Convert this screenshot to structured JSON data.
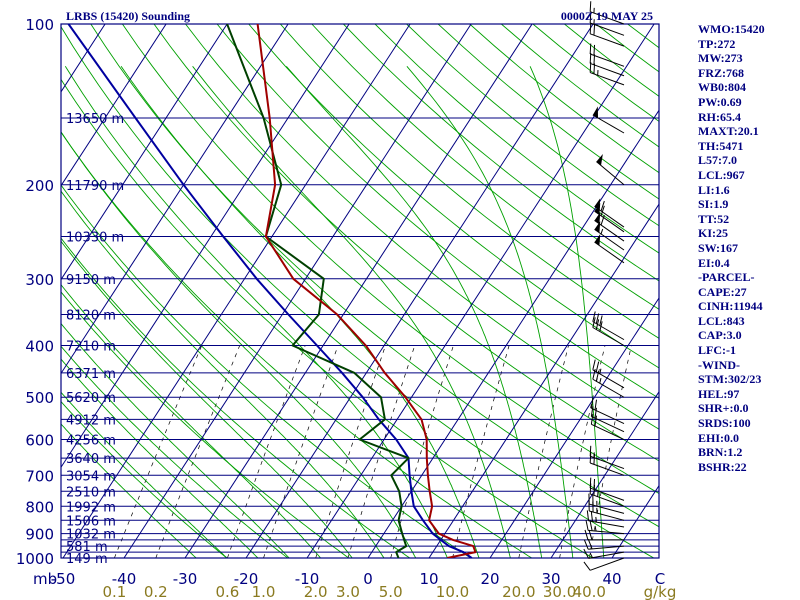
{
  "header": {
    "station": "LRBS (15420) Sounding",
    "time": "0000Z 19 MAY 25"
  },
  "axes": {
    "y_unit": "mb",
    "pressure_ticks": [
      "100",
      "200",
      "300",
      "400",
      "500",
      "600",
      "700",
      "800",
      "900",
      "1000"
    ],
    "temperature_ticks": [
      "-50",
      "-40",
      "-30",
      "-20",
      "-10",
      "0",
      "10",
      "20",
      "30",
      "40"
    ],
    "mixing_ratio_ticks": [
      "0.1",
      "0.2",
      "0.6",
      "1.0",
      "2.0",
      "3.0",
      "5.0",
      "10.0",
      "20.0",
      "30.0",
      "40.0"
    ],
    "mixing_ratio_unit": "g/kg",
    "temperature_unit": "C"
  },
  "colors": {
    "frame": "#000080",
    "isobar": "#000080",
    "isotherm": "#000080",
    "dry_adiabat": "#00a000",
    "moist_adiabat": "#00a000",
    "mixing_ratio": "#000000",
    "temperature": "#a00000",
    "dewpoint": "#004000",
    "parcel": "#0000a0",
    "tick_label": "#000080",
    "mixing_label": "#8a7a20",
    "sidebar_text": "#000080",
    "wind_barb": "#000000"
  },
  "chart_data": {
    "type": "skew-t",
    "pressure_range_mb": [
      1000,
      100
    ],
    "temperature_range_c": [
      -50,
      50
    ],
    "isobars_mb": [
      100,
      150,
      200,
      250,
      300,
      350,
      400,
      450,
      500,
      550,
      600,
      650,
      700,
      750,
      800,
      850,
      900,
      925,
      950,
      975,
      1000
    ],
    "heights": [
      {
        "p": 150,
        "label": "13650 m"
      },
      {
        "p": 200,
        "label": "11790 m"
      },
      {
        "p": 250,
        "label": "10330 m"
      },
      {
        "p": 300,
        "label": "9150 m"
      },
      {
        "p": 350,
        "label": "8120 m"
      },
      {
        "p": 400,
        "label": "7210 m"
      },
      {
        "p": 450,
        "label": "6371 m"
      },
      {
        "p": 500,
        "label": "5620 m"
      },
      {
        "p": 550,
        "label": "4912 m"
      },
      {
        "p": 600,
        "label": "4256 m"
      },
      {
        "p": 650,
        "label": "3640 m"
      },
      {
        "p": 700,
        "label": "3054 m"
      },
      {
        "p": 750,
        "label": "2510 m"
      },
      {
        "p": 800,
        "label": "1992 m"
      },
      {
        "p": 850,
        "label": "1506 m"
      },
      {
        "p": 900,
        "label": "1032 m"
      },
      {
        "p": 950,
        "label": "581 m"
      },
      {
        "p": 1000,
        "label": "149 m"
      }
    ],
    "temperature": [
      [
        1000,
        13
      ],
      [
        975,
        17
      ],
      [
        950,
        16
      ],
      [
        925,
        12
      ],
      [
        900,
        9
      ],
      [
        850,
        6
      ],
      [
        800,
        5
      ],
      [
        750,
        3
      ],
      [
        700,
        1
      ],
      [
        650,
        -1
      ],
      [
        600,
        -3
      ],
      [
        550,
        -6
      ],
      [
        500,
        -11
      ],
      [
        450,
        -17
      ],
      [
        400,
        -23
      ],
      [
        350,
        -31
      ],
      [
        300,
        -42
      ],
      [
        250,
        -51
      ],
      [
        200,
        -55
      ],
      [
        150,
        -63
      ],
      [
        100,
        -75
      ]
    ],
    "dewpoint": [
      [
        1000,
        5
      ],
      [
        975,
        4
      ],
      [
        950,
        5
      ],
      [
        925,
        4
      ],
      [
        900,
        3
      ],
      [
        850,
        1
      ],
      [
        800,
        0
      ],
      [
        750,
        -2
      ],
      [
        700,
        -5
      ],
      [
        650,
        -4
      ],
      [
        600,
        -14
      ],
      [
        550,
        -12
      ],
      [
        500,
        -15
      ],
      [
        450,
        -22
      ],
      [
        400,
        -35
      ],
      [
        350,
        -34
      ],
      [
        300,
        -37
      ],
      [
        250,
        -51
      ],
      [
        200,
        -54
      ],
      [
        150,
        -64
      ],
      [
        100,
        -80
      ]
    ],
    "parcel": [
      [
        1000,
        17
      ],
      [
        975,
        15
      ],
      [
        950,
        12
      ],
      [
        925,
        10
      ],
      [
        900,
        8
      ],
      [
        850,
        5
      ],
      [
        800,
        2
      ],
      [
        750,
        0
      ],
      [
        700,
        -2
      ],
      [
        650,
        -4
      ],
      [
        600,
        -8
      ],
      [
        550,
        -13
      ],
      [
        500,
        -18
      ],
      [
        450,
        -24
      ],
      [
        400,
        -31
      ],
      [
        350,
        -39
      ],
      [
        300,
        -48
      ],
      [
        250,
        -58
      ],
      [
        200,
        -70
      ],
      [
        150,
        -85
      ],
      [
        100,
        -106
      ]
    ],
    "dry_adiabats_k": [
      250,
      260,
      270,
      280,
      290,
      300,
      310,
      320,
      330,
      340,
      350,
      360,
      370,
      380,
      390,
      400,
      410,
      420,
      430,
      440,
      450,
      460,
      470,
      480,
      490,
      500,
      510,
      520,
      530,
      540,
      550,
      560
    ],
    "moist_adiabats_c": [
      -25,
      -20,
      -15,
      -10,
      -5,
      0,
      5,
      10,
      15,
      20,
      25,
      30,
      35,
      40
    ],
    "mixing_ratios_gkg": [
      0.1,
      0.2,
      0.6,
      1.0,
      2.0,
      3.0,
      5.0,
      10.0,
      20.0,
      30.0,
      40.0
    ],
    "wind_barbs": [
      {
        "p": 1000,
        "dir": 250,
        "spd": 10
      },
      {
        "p": 975,
        "dir": 260,
        "spd": 15
      },
      {
        "p": 950,
        "dir": 265,
        "spd": 20
      },
      {
        "p": 925,
        "dir": 270,
        "spd": 20
      },
      {
        "p": 900,
        "dir": 275,
        "spd": 25
      },
      {
        "p": 875,
        "dir": 280,
        "spd": 25
      },
      {
        "p": 850,
        "dir": 285,
        "spd": 25
      },
      {
        "p": 825,
        "dir": 285,
        "spd": 25
      },
      {
        "p": 800,
        "dir": 290,
        "spd": 25
      },
      {
        "p": 780,
        "dir": 290,
        "spd": 20
      },
      {
        "p": 700,
        "dir": 290,
        "spd": 20
      },
      {
        "p": 680,
        "dir": 290,
        "spd": 15
      },
      {
        "p": 600,
        "dir": 295,
        "spd": 20
      },
      {
        "p": 580,
        "dir": 295,
        "spd": 20
      },
      {
        "p": 560,
        "dir": 295,
        "spd": 20
      },
      {
        "p": 500,
        "dir": 300,
        "spd": 25
      },
      {
        "p": 480,
        "dir": 300,
        "spd": 25
      },
      {
        "p": 400,
        "dir": 300,
        "spd": 30
      },
      {
        "p": 390,
        "dir": 300,
        "spd": 30
      },
      {
        "p": 280,
        "dir": 305,
        "spd": 50
      },
      {
        "p": 265,
        "dir": 305,
        "spd": 55
      },
      {
        "p": 255,
        "dir": 305,
        "spd": 60
      },
      {
        "p": 245,
        "dir": 305,
        "spd": 60
      },
      {
        "p": 240,
        "dir": 305,
        "spd": 60
      },
      {
        "p": 200,
        "dir": 310,
        "spd": 50
      },
      {
        "p": 160,
        "dir": 300,
        "spd": 50
      },
      {
        "p": 130,
        "dir": 290,
        "spd": 25
      },
      {
        "p": 125,
        "dir": 290,
        "spd": 20
      },
      {
        "p": 120,
        "dir": 290,
        "spd": 20
      },
      {
        "p": 110,
        "dir": 290,
        "spd": 20
      },
      {
        "p": 105,
        "dir": 290,
        "spd": 15
      },
      {
        "p": 100,
        "dir": 290,
        "spd": 15
      }
    ]
  },
  "indices": [
    "WMO:15420",
    "TP:272",
    "MW:273",
    "FRZ:768",
    "WB0:804",
    "PW:0.69",
    "RH:65.4",
    "MAXT:20.1",
    "TH:5471",
    "L57:7.0",
    "LCL:967",
    "LI:1.6",
    "SI:1.9",
    "TT:52",
    "KI:25",
    "SW:167",
    "EI:0.4",
    "-PARCEL-",
    "CAPE:27",
    "CINH:11944",
    "LCL:843",
    "CAP:3.0",
    "LFC:-1",
    "-WIND-",
    "STM:302/23",
    "HEL:97",
    "SHR+:0.0",
    "SRDS:100",
    "EHI:0.0",
    "BRN:1.2",
    "BSHR:22"
  ]
}
